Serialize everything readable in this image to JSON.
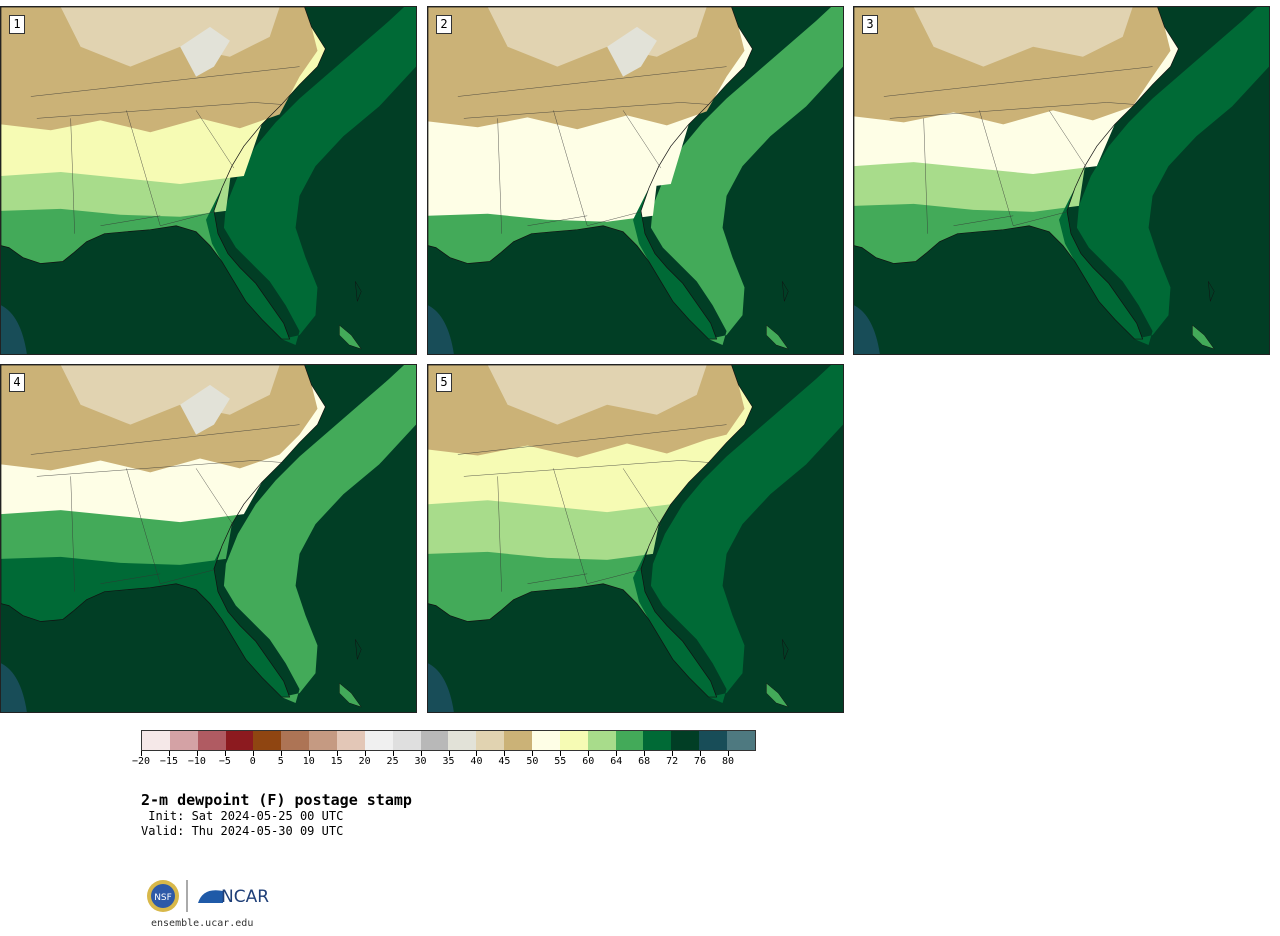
{
  "panels": [
    {
      "label": "1",
      "variant": "a"
    },
    {
      "label": "2",
      "variant": "b"
    },
    {
      "label": "3",
      "variant": "c"
    },
    {
      "label": "4",
      "variant": "d"
    },
    {
      "label": "5",
      "variant": "e"
    }
  ],
  "colorbar": {
    "colors": [
      "#f5e8e8",
      "#d4a2a5",
      "#b05b62",
      "#8c1a1f",
      "#8f4511",
      "#ad7455",
      "#c59a82",
      "#e3c7b7",
      "#f0f0f0",
      "#dfdfdf",
      "#b8b8b8",
      "#e2e2d8",
      "#e1d3b1",
      "#cbb277",
      "#fefee6",
      "#f6fbb4",
      "#a8dc8b",
      "#43aa59",
      "#006a36",
      "#013e25",
      "#184d58",
      "#4e7980"
    ],
    "tick_labels": [
      "−20",
      "−15",
      "−10",
      "−5",
      "0",
      "5",
      "10",
      "15",
      "20",
      "25",
      "30",
      "35",
      "40",
      "45",
      "50",
      "55",
      "60",
      "64",
      "68",
      "72",
      "76",
      "80"
    ]
  },
  "title": "2-m dewpoint (F) postage stamp",
  "init": " Init: Sat 2024-05-25 00 UTC",
  "valid": "Valid: Thu 2024-05-30 09 UTC",
  "logos": {
    "nsf_text": "NSF",
    "ncar_text": "NCAR"
  },
  "site": "ensemble.ucar.edu"
}
